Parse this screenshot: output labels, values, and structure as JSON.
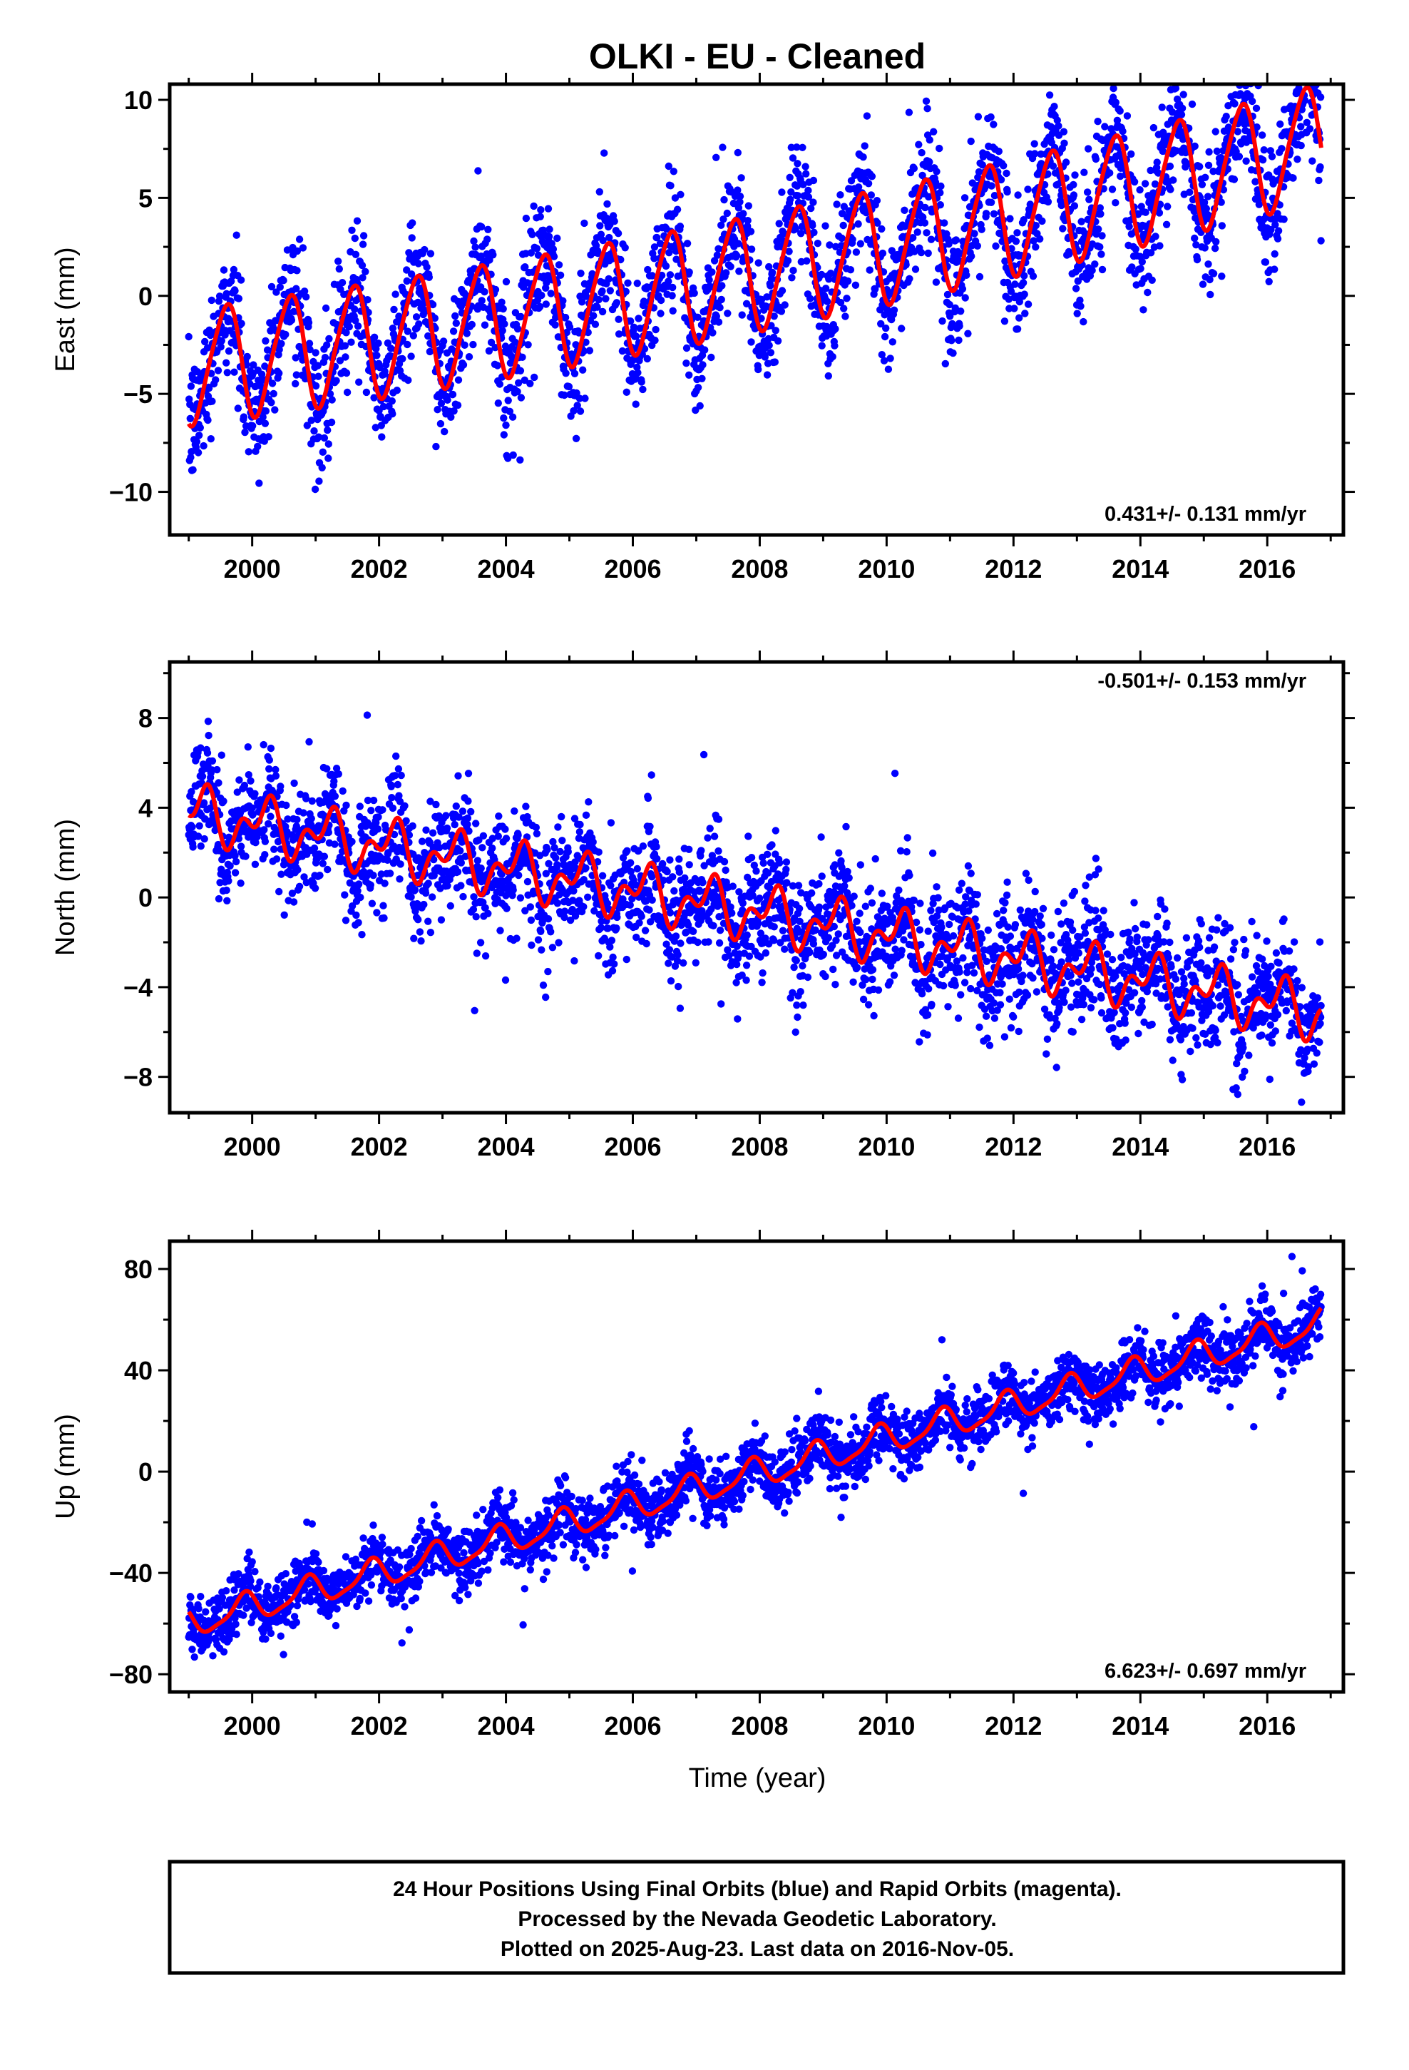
{
  "title": "OLKI  - EU - Cleaned",
  "colors": {
    "points": "#0000ff",
    "model": "#ff0000",
    "axes": "#000000"
  },
  "chart_data": [
    {
      "type": "scatter",
      "name": "east",
      "ylabel": "East (mm)",
      "xlabel": "",
      "xlim": [
        1998.7,
        2017.2
      ],
      "ylim": [
        -12.2,
        10.8
      ],
      "xticks": [
        2000,
        2002,
        2004,
        2006,
        2008,
        2010,
        2012,
        2014,
        2016
      ],
      "xtick_labels": [
        "2000",
        "2002",
        "2004",
        "2006",
        "2008",
        "2010",
        "2012",
        "2014",
        "2016"
      ],
      "yticks": [
        -10,
        -5,
        0,
        5,
        10
      ],
      "ytick_labels": [
        "−10",
        "−5",
        "0",
        "5",
        "10"
      ],
      "rate_label": "0.431+/- 0.131 mm/yr",
      "rate_position": "bottom-right",
      "time_range": [
        1999.0,
        2016.85
      ],
      "model": {
        "offset": -3.6,
        "trend_mm_per_yr": 0.431,
        "ref_year": 1999.0,
        "annual_amp": 2.9,
        "annual_phase_year": 0.33,
        "semiannual_amp": 0.4,
        "semiannual_phase_year": 0.1,
        "accel": 0.012
      },
      "scatter_sigma": 1.6
    },
    {
      "type": "scatter",
      "name": "north",
      "ylabel": "North (mm)",
      "xlabel": "",
      "xlim": [
        1998.7,
        2017.2
      ],
      "ylim": [
        -9.6,
        10.5
      ],
      "xticks": [
        2000,
        2002,
        2004,
        2006,
        2008,
        2010,
        2012,
        2014,
        2016
      ],
      "xtick_labels": [
        "2000",
        "2002",
        "2004",
        "2006",
        "2008",
        "2010",
        "2012",
        "2014",
        "2016"
      ],
      "yticks": [
        -8,
        -4,
        0,
        4,
        8
      ],
      "ytick_labels": [
        "−8",
        "−4",
        "0",
        "4",
        "8"
      ],
      "rate_label": "-0.501+/- 0.153 mm/yr",
      "rate_position": "top-right",
      "time_range": [
        1999.0,
        2016.85
      ],
      "model": {
        "offset": 3.8,
        "trend_mm_per_yr": -0.501,
        "ref_year": 1999.0,
        "annual_amp": 0.9,
        "annual_phase_year": 0.95,
        "semiannual_amp": 0.7,
        "semiannual_phase_year": 0.2,
        "accel": 0.0
      },
      "scatter_sigma": 1.3
    },
    {
      "type": "scatter",
      "name": "up",
      "ylabel": "Up (mm)",
      "xlabel": "Time (year)",
      "xlim": [
        1998.7,
        2017.2
      ],
      "ylim": [
        -87,
        91
      ],
      "xticks": [
        2000,
        2002,
        2004,
        2006,
        2008,
        2010,
        2012,
        2014,
        2016
      ],
      "xtick_labels": [
        "2000",
        "2002",
        "2004",
        "2006",
        "2008",
        "2010",
        "2012",
        "2014",
        "2016"
      ],
      "yticks": [
        -80,
        -40,
        0,
        40,
        80
      ],
      "ytick_labels": [
        "−80",
        "−40",
        "0",
        "40",
        "80"
      ],
      "rate_label": "6.623+/- 0.697 mm/yr",
      "rate_position": "bottom-right",
      "time_range": [
        1999.0,
        2016.85
      ],
      "model": {
        "offset": -60.0,
        "trend_mm_per_yr": 6.623,
        "ref_year": 1999.0,
        "annual_amp": 5.5,
        "annual_phase_year": 0.62,
        "semiannual_amp": 1.5,
        "semiannual_phase_year": 0.3,
        "accel": 0.0
      },
      "scatter_sigma": 6.0
    }
  ],
  "footer": {
    "line1": "24 Hour Positions Using Final Orbits (blue) and Rapid Orbits (magenta).",
    "line2": "Processed by the Nevada Geodetic Laboratory.",
    "line3": "Plotted on 2025-Aug-23. Last data on 2016-Nov-05."
  }
}
